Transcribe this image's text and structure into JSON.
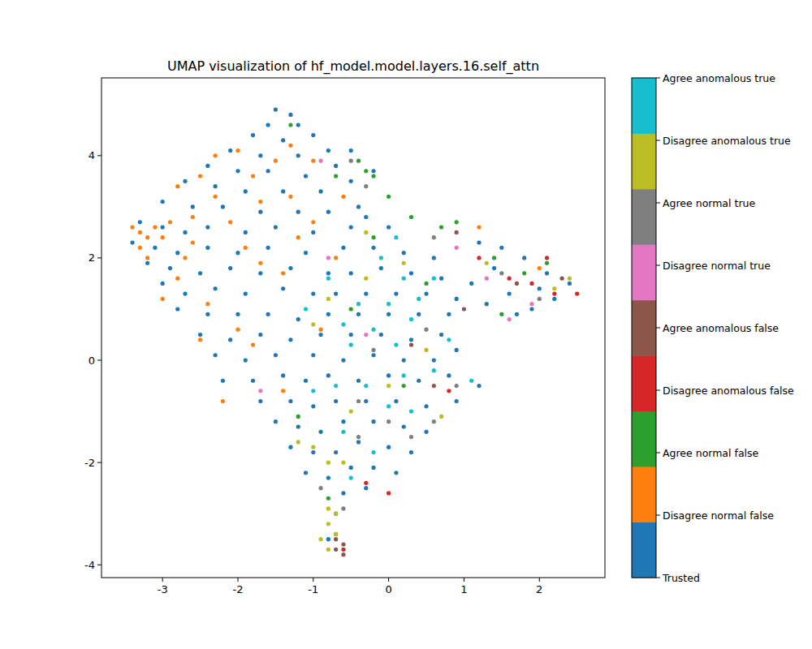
{
  "chart_data": {
    "type": "scatter",
    "title": "UMAP visualization of hf_model.model.layers.16.self_attn",
    "xlim": [
      -3.81,
      2.87
    ],
    "ylim": [
      -4.25,
      5.52
    ],
    "xticks": [
      -3,
      -2,
      -1,
      0,
      1,
      2
    ],
    "yticks": [
      -4,
      -2,
      0,
      2,
      4
    ],
    "marker": "circle",
    "colorbar": {
      "range": [
        0,
        8
      ],
      "ticks": [
        0,
        1,
        2,
        3,
        4,
        5,
        6,
        7,
        8
      ]
    },
    "series": [
      {
        "name": "Trusted",
        "color": "#1f77b4",
        "x": [
          -1.5,
          -1.3,
          -1.6,
          -1.2,
          -1.8,
          -1.4,
          -1.0,
          -2.1,
          -1.7,
          -1.2,
          -0.8,
          -2.4,
          -2.0,
          -1.6,
          -1.1,
          -0.7,
          -2.7,
          -2.3,
          -1.9,
          -1.4,
          -0.9,
          -0.5,
          -3.0,
          -2.6,
          -2.2,
          -1.7,
          -1.2,
          -0.8,
          -0.4,
          -3.3,
          -3.0,
          -2.7,
          -2.4,
          -1.9,
          -1.5,
          -1.0,
          -0.5,
          -3.4,
          -3.1,
          -2.8,
          -2.4,
          -2.0,
          -1.6,
          -1.1,
          -0.6,
          -3.2,
          -2.9,
          -2.5,
          -2.1,
          -1.7,
          -1.3,
          -0.8,
          -3.0,
          -2.7,
          -2.3,
          -1.9,
          -1.4,
          -1.0,
          -2.8,
          -2.4,
          -2.0,
          -1.6,
          -1.2,
          -2.5,
          -2.1,
          -1.7,
          -1.3,
          -2.3,
          -1.9,
          -1.5,
          -2.2,
          -1.8,
          -1.4,
          -1.7,
          -1.3,
          -1.5,
          -1.2,
          -1.3,
          -1.0,
          -1.1,
          -0.8,
          -0.6,
          -0.3,
          -0.5,
          -0.2,
          0.1,
          -0.7,
          -0.4,
          0.0,
          0.3,
          -0.9,
          -0.6,
          -0.2,
          0.2,
          0.5,
          -1.0,
          -0.7,
          -0.3,
          0.1,
          0.5,
          0.9,
          1.2,
          -1.1,
          -0.8,
          -0.4,
          0.0,
          0.4,
          0.8,
          -1.0,
          -0.6,
          -0.2,
          0.2,
          0.6,
          0.9,
          -0.9,
          -0.5,
          -0.1,
          0.3,
          0.7,
          -0.8,
          -0.4,
          0.0,
          0.4,
          0.8,
          -0.7,
          -0.3,
          0.1,
          0.5,
          0.9,
          -0.5,
          -0.1,
          0.3,
          0.7,
          1.1,
          -0.2,
          0.2,
          0.6,
          0.0,
          -0.3,
          1.4,
          1.6,
          1.9,
          2.2,
          2.4,
          2.1,
          1.8,
          1.5,
          1.2,
          2.0,
          1.3,
          1.7,
          -0.7,
          -0.8,
          -0.2,
          -0.5
        ],
        "values": [
          4.9,
          4.8,
          4.6,
          4.6,
          4.4,
          4.3,
          4.4,
          4.1,
          4.0,
          4.0,
          4.1,
          3.8,
          3.7,
          3.7,
          3.6,
          3.8,
          3.5,
          3.4,
          3.3,
          3.3,
          3.3,
          3.5,
          3.1,
          3.0,
          3.0,
          2.9,
          2.9,
          2.9,
          3.0,
          2.7,
          2.6,
          2.5,
          2.6,
          2.5,
          2.6,
          2.5,
          2.6,
          2.3,
          2.2,
          2.1,
          2.2,
          2.1,
          2.2,
          2.1,
          2.2,
          1.9,
          1.8,
          1.7,
          1.8,
          1.7,
          1.8,
          1.7,
          1.5,
          1.3,
          1.4,
          1.3,
          1.4,
          1.3,
          1.0,
          0.9,
          0.9,
          0.9,
          0.8,
          0.5,
          0.4,
          0.5,
          0.4,
          0.1,
          0.0,
          0.1,
          -0.4,
          -0.4,
          -0.3,
          -0.8,
          -0.8,
          -1.2,
          -1.3,
          -1.7,
          -1.8,
          -2.2,
          -2.3,
          -2.6,
          -2.5,
          -2.1,
          -2.1,
          -2.2,
          -1.8,
          -1.6,
          -1.7,
          -1.8,
          -1.4,
          -1.2,
          -1.2,
          -1.3,
          -1.4,
          -0.9,
          -0.8,
          -0.8,
          -0.8,
          -0.9,
          -0.8,
          -0.5,
          -0.4,
          -0.3,
          -0.4,
          -0.3,
          -0.4,
          -0.3,
          0.1,
          0.0,
          0.1,
          0.0,
          0.0,
          0.2,
          0.5,
          0.5,
          0.5,
          0.4,
          0.5,
          0.9,
          0.9,
          0.9,
          0.9,
          0.9,
          1.3,
          1.3,
          1.3,
          1.3,
          1.2,
          1.7,
          1.8,
          1.7,
          1.6,
          1.5,
          2.2,
          2.1,
          2.0,
          2.6,
          2.8,
          1.8,
          1.3,
          1.0,
          1.2,
          1.5,
          1.7,
          2.0,
          2.2,
          2.3,
          1.4,
          1.1,
          0.9,
          -3.0,
          -3.5,
          3.7,
          4.1
        ]
      },
      {
        "name": "Disagree normal false",
        "color": "#ff7f0e",
        "x": [
          -3.3,
          -3.2,
          -3.4,
          -3.1,
          -3.3,
          -3.0,
          -2.9,
          -3.2,
          -2.6,
          -2.3,
          -2.0,
          -2.3,
          -1.8,
          -1.5,
          -1.3,
          -1.0,
          -2.8,
          -2.5,
          -2.1,
          -1.7,
          -1.9,
          -1.4,
          -2.6,
          -2.8,
          -2.4,
          -2.0,
          -2.5,
          -1.8,
          -1.0,
          -1.3,
          -0.6,
          -2.2,
          -1.4,
          -3.0,
          -2.7,
          -1.2,
          -1.7,
          -0.9,
          2.0,
          1.2,
          -0.7
        ],
        "values": [
          2.5,
          2.4,
          2.6,
          2.6,
          2.2,
          2.4,
          2.7,
          2.0,
          2.8,
          3.2,
          4.1,
          4.0,
          3.6,
          3.9,
          4.2,
          3.9,
          3.4,
          3.6,
          2.7,
          1.9,
          2.2,
          1.7,
          2.3,
          1.6,
          1.1,
          0.6,
          0.4,
          0.3,
          2.7,
          3.2,
          3.2,
          -0.8,
          -0.6,
          1.2,
          2.0,
          2.4,
          3.1,
          0.6,
          1.8,
          2.6,
          2.0
        ]
      },
      {
        "name": "Agree normal false",
        "color": "#2ca02c",
        "x": [
          -0.3,
          -0.2,
          -0.4,
          0.0,
          -0.7,
          -1.3,
          0.3,
          0.7,
          0.9,
          1.4,
          1.8,
          2.1,
          1.5,
          -0.5,
          0.2,
          -0.8,
          -0.7,
          -1.2,
          0.5,
          -0.2
        ],
        "values": [
          3.7,
          3.6,
          3.9,
          3.2,
          3.6,
          4.6,
          2.8,
          2.6,
          2.7,
          2.0,
          1.7,
          1.9,
          0.9,
          1.0,
          -0.5,
          -2.7,
          -3.4,
          -1.1,
          1.5,
          2.4
        ]
      },
      {
        "name": "Disagree anomalous false",
        "color": "#d62728",
        "x": [
          2.5,
          2.2,
          1.9,
          1.6,
          2.1,
          0.0,
          -0.6,
          -0.3,
          1.2,
          0.8
        ],
        "values": [
          1.3,
          1.3,
          1.5,
          1.6,
          2.0,
          -2.6,
          -3.7,
          -2.4,
          2.0,
          -0.6
        ]
      },
      {
        "name": "Agree anomalous false",
        "color": "#8c564b",
        "x": [
          -0.6,
          -0.7,
          -0.7,
          -0.6,
          1.7,
          2.3,
          0.9,
          0.6,
          0.3,
          1.0
        ],
        "values": [
          -3.8,
          -3.7,
          -3.5,
          -3.6,
          1.5,
          1.6,
          2.5,
          -0.5,
          0.3,
          1.0
        ]
      },
      {
        "name": "Disagree normal true",
        "color": "#e377c2",
        "x": [
          1.6,
          1.9,
          1.3,
          0.9,
          -0.8,
          -1.7,
          -0.9,
          -0.3
        ],
        "values": [
          0.8,
          1.1,
          1.6,
          2.2,
          2.0,
          -0.6,
          3.9,
          0.5
        ]
      },
      {
        "name": "Agree normal true",
        "color": "#7f7f7f",
        "x": [
          -0.9,
          -0.6,
          -0.4,
          0.0,
          0.6,
          0.9,
          -0.2,
          0.5,
          -0.5,
          -0.3,
          0.6,
          1.5,
          2.0,
          -0.4,
          0.3
        ],
        "values": [
          -2.5,
          -2.9,
          -1.5,
          -1.2,
          -1.2,
          -0.5,
          0.2,
          0.6,
          3.9,
          3.4,
          2.4,
          1.7,
          1.2,
          -0.8,
          -1.5
        ]
      },
      {
        "name": "Disagree anomalous true",
        "color": "#bcbd22",
        "x": [
          -0.8,
          -0.7,
          -0.8,
          -0.7,
          -0.9,
          -0.8,
          -0.8,
          -1.0,
          -1.2,
          -0.5,
          0.0,
          0.5,
          -0.3,
          0.2,
          -0.8,
          2.4,
          2.2,
          1.3,
          -1.0,
          -0.3,
          0.7,
          -0.6
        ],
        "values": [
          -2.9,
          -3.0,
          -3.2,
          -3.4,
          -3.5,
          -3.7,
          -2.0,
          -1.7,
          -1.6,
          -1.0,
          -0.5,
          0.2,
          1.6,
          1.9,
          1.2,
          1.6,
          1.4,
          1.9,
          0.7,
          2.5,
          -1.1,
          -2.0
        ]
      },
      {
        "name": "Agree anomalous true",
        "color": "#17becf",
        "x": [
          -0.5,
          -0.2,
          0.1,
          0.3,
          -0.4,
          0.0,
          0.4,
          -0.6,
          0.2,
          -0.3,
          0.6,
          0.0,
          -0.6,
          -0.2,
          0.2,
          -0.1,
          0.1,
          0.6,
          -1.0,
          -0.8,
          0.8,
          1.1,
          -0.5,
          -1.1,
          0.3,
          -0.7
        ],
        "values": [
          0.3,
          0.6,
          0.3,
          0.8,
          1.1,
          1.1,
          1.2,
          0.7,
          -0.3,
          -0.5,
          -0.2,
          -0.9,
          -1.4,
          -1.8,
          1.6,
          2.0,
          2.4,
          1.6,
          -0.6,
          1.6,
          0.4,
          -0.4,
          -2.3,
          1.0,
          -1.0,
          -0.5
        ]
      }
    ]
  }
}
